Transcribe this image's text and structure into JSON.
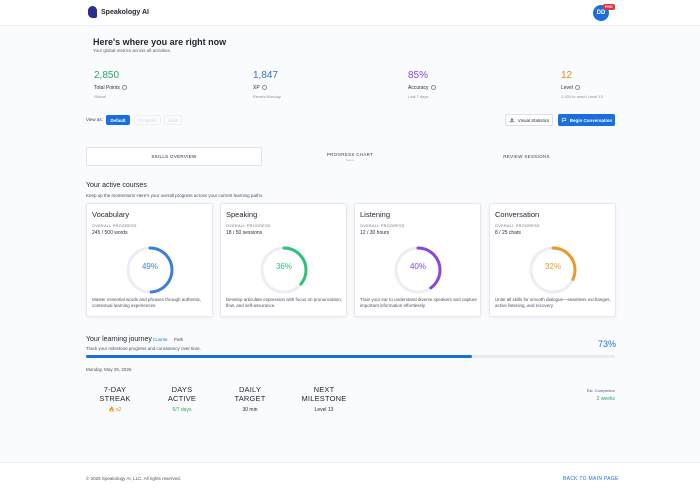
{
  "app": {
    "name": "Speakology AI",
    "avatar_initials": "DD",
    "badge": "PRO"
  },
  "hero": {
    "title": "Here's where you are right now",
    "subtitle": "Your global metrics across all activities."
  },
  "metrics": [
    {
      "value": "2,850",
      "label": "Total Points",
      "note": "Global",
      "color": "#2aa765"
    },
    {
      "value": "1,847",
      "label": "XP",
      "note": "Resets Monday",
      "color": "#3a6fd0"
    },
    {
      "value": "85%",
      "label": "Accuracy",
      "note": "Last 7 days",
      "color": "#8a48d8"
    },
    {
      "value": "12",
      "label": "Level",
      "note": "2,150 to reach Level 13",
      "color": "#e8891c"
    }
  ],
  "view": {
    "label": "View as:",
    "options": [
      "Default",
      "Progress",
      "Skills"
    ],
    "selected": "Default"
  },
  "actions": {
    "visual_statistics": "Visual Statistics",
    "begin_conversation": "Begin Conversation"
  },
  "tabs": [
    {
      "label": "SKILLS OVERVIEW",
      "active": true
    },
    {
      "label": "PROGRESS CHART",
      "note": "Soon"
    },
    {
      "label": "REVIEW SESSIONS"
    }
  ],
  "courses": {
    "title": "Your active courses",
    "subtitle": "Keep up the momentum! Here's your overall progress across your current learning paths.",
    "cards": [
      {
        "title": "Vocabulary",
        "overall_label": "OVERALL PROGRESS",
        "detail": "245 / 500 words",
        "percent_label": "49%",
        "percent": 49,
        "color": "#3a7fe0",
        "description": "Master essential words and phrases through authentic, contextual learning experiences."
      },
      {
        "title": "Speaking",
        "overall_label": "OVERALL PROGRESS",
        "detail": "18 / 50 sessions",
        "percent_label": "36%",
        "percent": 36,
        "color": "#2fbf78",
        "description": "Develop articulate expression with focus on pronunciation, flow, and self-assurance."
      },
      {
        "title": "Listening",
        "overall_label": "OVERALL PROGRESS",
        "detail": "12 / 30 hours",
        "percent_label": "40%",
        "percent": 40,
        "color": "#8a48d8",
        "description": "Train your ear to understand diverse speakers and capture important information effortlessly."
      },
      {
        "title": "Conversation",
        "overall_label": "OVERALL PROGRESS",
        "detail": "8 / 25 chats",
        "percent_label": "32%",
        "percent": 32,
        "color": "#e89a2c",
        "description": "Unite all skills for smooth dialogue—seamless exchanges, active listening, and recovery."
      }
    ]
  },
  "journey": {
    "title": "Your learning journey",
    "toggle": [
      "Course",
      "Path"
    ],
    "subtitle": "Track your milestone progress and consistency over time.",
    "percent_label": "73%",
    "percent": 73,
    "date": "Monday, May 25, 2026",
    "stats": [
      {
        "key": "7-DAY STREAK",
        "value": "🔥 x2",
        "color": "#e8741c"
      },
      {
        "key": "DAYS ACTIVE",
        "value": "5/7 days",
        "color": "#2aa765"
      },
      {
        "key": "DAILY TARGET",
        "value": "30 min",
        "color": "#1f2330"
      },
      {
        "key": "NEXT MILESTONE",
        "value": "Level 13",
        "color": "#1f2330"
      }
    ],
    "estimate": {
      "label": "Est. Completion",
      "value": "2 weeks"
    }
  },
  "footer": {
    "copyright": "© 2025 Speakology AI, LLC. All rights reserved.",
    "back": "BACK TO MAIN PAGE"
  }
}
